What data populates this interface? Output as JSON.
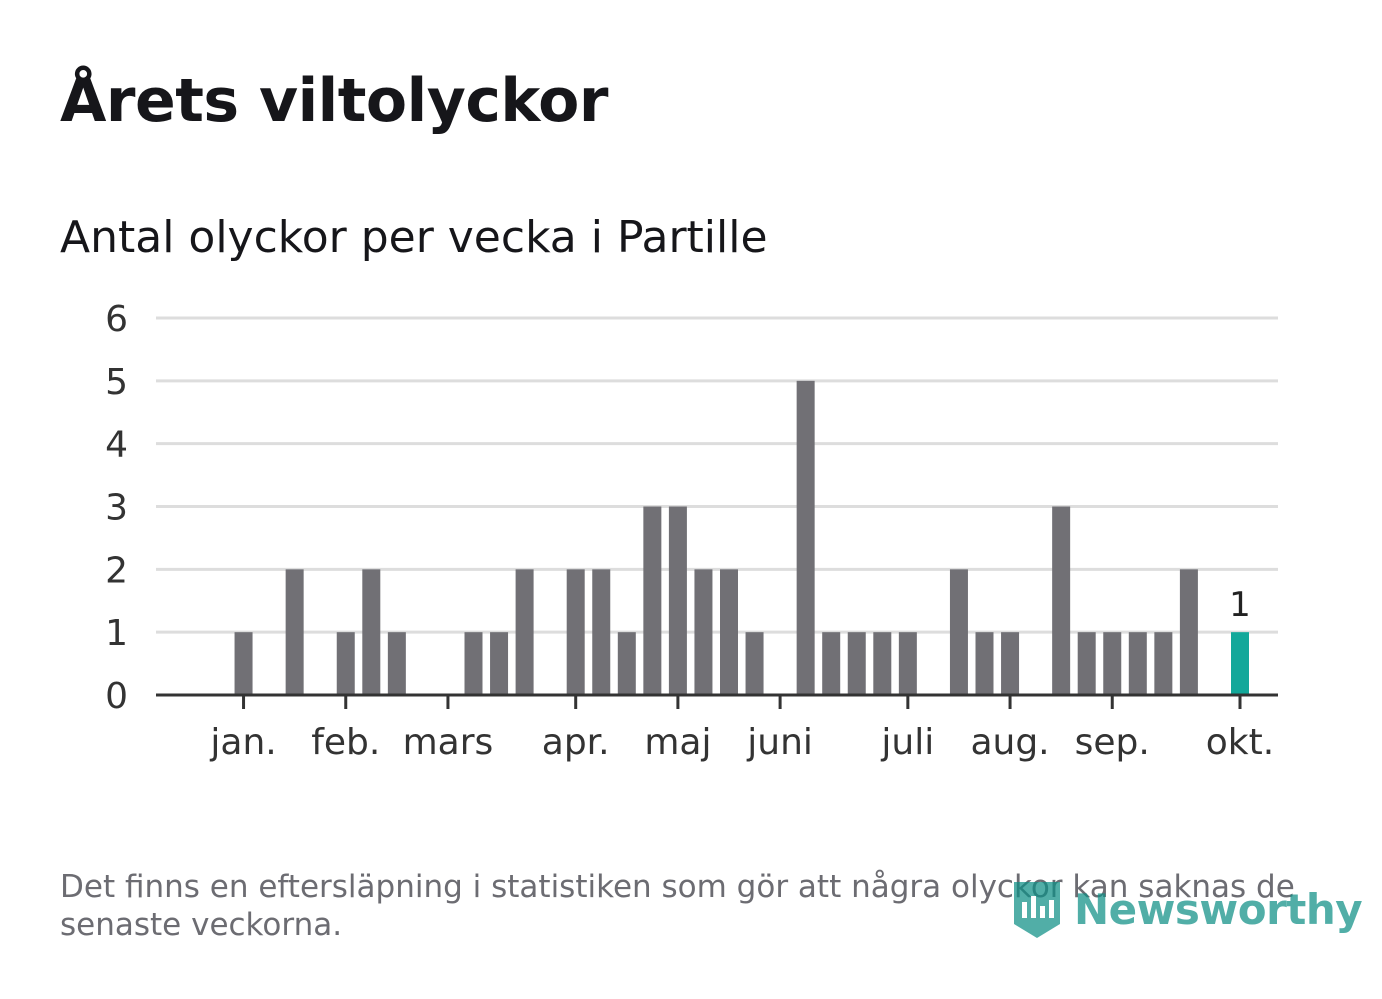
{
  "header": {
    "title": "Årets viltolyckor",
    "subtitle": "Antal olyckor per vecka i Partille"
  },
  "footer": {
    "note": "Det finns en eftersläpning i statistiken som gör att några olyckor kan saknas de senaste veckorna.",
    "brand": "Newsworthy"
  },
  "colors": {
    "bar": "#717075",
    "highlight": "#13a89a",
    "grid": "#dddddd",
    "axis": "#333333",
    "text": "#333333",
    "brand": "#0f8f86"
  },
  "chart_data": {
    "type": "bar",
    "title": "Antal olyckor per vecka i Partille",
    "xlabel": "",
    "ylabel": "",
    "ylim": [
      0,
      6
    ],
    "yticks": [
      0,
      1,
      2,
      3,
      4,
      5,
      6
    ],
    "grid": true,
    "weeks": [
      1,
      2,
      3,
      4,
      5,
      6,
      7,
      8,
      9,
      10,
      11,
      12,
      13,
      14,
      15,
      16,
      17,
      18,
      19,
      20,
      21,
      22,
      23,
      24,
      25,
      26,
      27,
      28,
      29,
      30,
      31,
      32,
      33,
      34,
      35,
      36,
      37,
      38,
      39,
      40,
      41
    ],
    "values": [
      0,
      1,
      0,
      2,
      0,
      1,
      2,
      1,
      0,
      0,
      1,
      1,
      2,
      0,
      2,
      2,
      1,
      3,
      3,
      2,
      2,
      1,
      0,
      5,
      1,
      1,
      1,
      1,
      0,
      2,
      1,
      1,
      0,
      3,
      1,
      1,
      1,
      1,
      2,
      0,
      1
    ],
    "highlight_index": 40,
    "highlight_label": "1",
    "month_ticks": [
      {
        "label": "jan.",
        "week": 2
      },
      {
        "label": "feb.",
        "week": 6
      },
      {
        "label": "mars",
        "week": 10
      },
      {
        "label": "apr.",
        "week": 15
      },
      {
        "label": "maj",
        "week": 19
      },
      {
        "label": "juni",
        "week": 23
      },
      {
        "label": "juli",
        "week": 28
      },
      {
        "label": "aug.",
        "week": 32
      },
      {
        "label": "sep.",
        "week": 36
      },
      {
        "label": "okt.",
        "week": 41
      }
    ]
  }
}
